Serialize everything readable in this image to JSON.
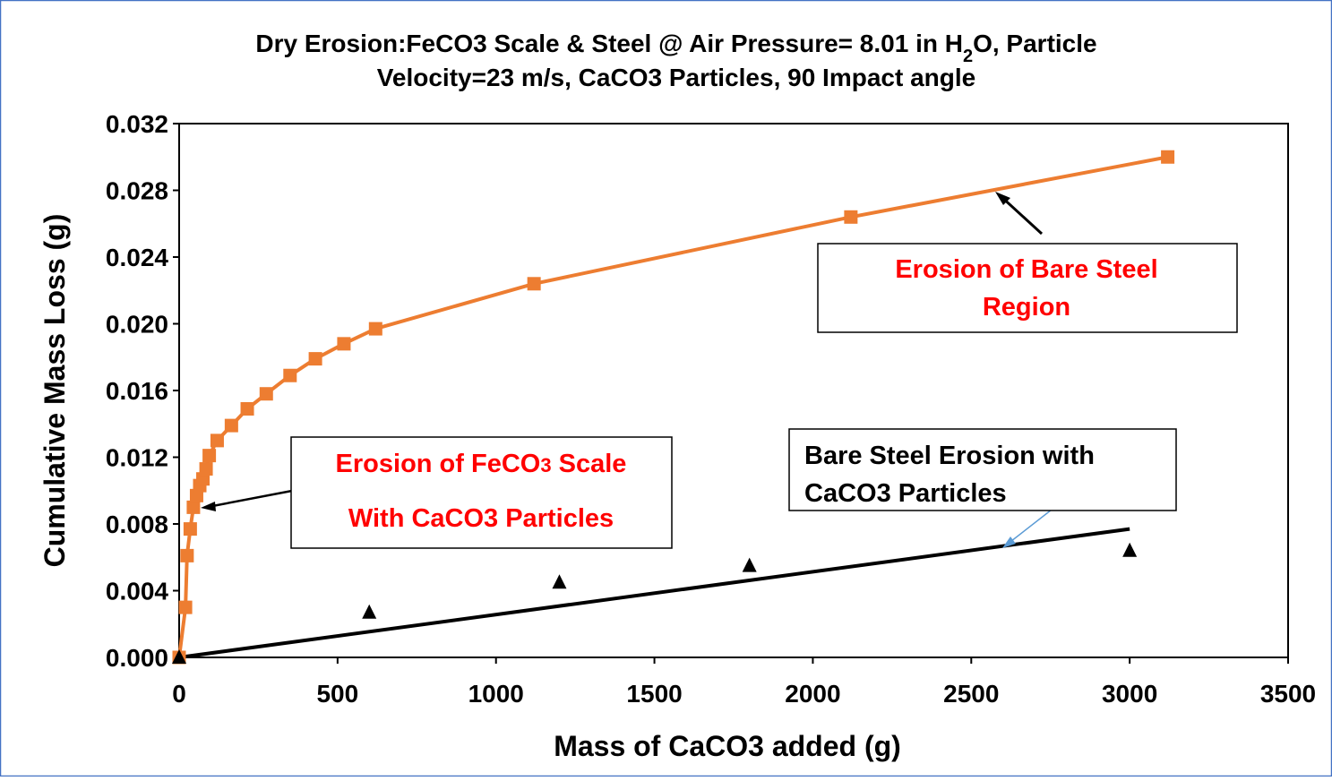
{
  "chart_data": {
    "type": "scatter",
    "title_lines": [
      {
        "parts": [
          {
            "t": "Dry Erosion:FeCO3 Scale & Steel @ Air Pressure= 8.01 in H"
          },
          {
            "t": "2",
            "sub": true
          },
          {
            "t": "O, Particle"
          }
        ]
      },
      {
        "parts": [
          {
            "t": "Velocity=23 m/s, CaCO3 Particles, 90 Impact angle"
          }
        ]
      }
    ],
    "xlabel": "Mass of CaCO3 added (g)",
    "ylabel": "Cumulative Mass Loss (g)",
    "xlim": [
      0,
      3500
    ],
    "ylim": [
      0,
      0.032
    ],
    "x_ticks": [
      0,
      500,
      1000,
      1500,
      2000,
      2500,
      3000,
      3500
    ],
    "y_ticks": [
      "0.000",
      "0.004",
      "0.008",
      "0.012",
      "0.016",
      "0.020",
      "0.024",
      "0.028",
      "0.032"
    ],
    "y_tick_values": [
      0,
      0.004,
      0.008,
      0.012,
      0.016,
      0.02,
      0.024,
      0.028,
      0.032
    ],
    "grid": false,
    "series": [
      {
        "style": "orange-squares-line",
        "color": "#ed7d31",
        "x": [
          0,
          20,
          25,
          35,
          45,
          55,
          65,
          75,
          85,
          95,
          120,
          165,
          215,
          275,
          350,
          430,
          520,
          620,
          1120,
          2120,
          3120
        ],
        "y": [
          0.0,
          0.003,
          0.0061,
          0.0077,
          0.009,
          0.0097,
          0.0103,
          0.0107,
          0.0113,
          0.0121,
          0.013,
          0.0139,
          0.0149,
          0.0158,
          0.0169,
          0.0179,
          0.0188,
          0.0197,
          0.0224,
          0.0264,
          0.03
        ]
      },
      {
        "style": "black-triangles",
        "color": "#000000",
        "x": [
          0,
          600,
          1200,
          1800,
          3000
        ],
        "y": [
          0.0,
          0.0027,
          0.0045,
          0.0055,
          0.0064
        ]
      },
      {
        "style": "black-trendline",
        "color": "#000000",
        "x": [
          0,
          3000
        ],
        "y": [
          0.0,
          0.0077
        ]
      }
    ],
    "annotations": [
      {
        "lines": [
          [
            {
              "t": "Erosion of Bare Steel"
            }
          ],
          [
            {
              "t": "Region"
            }
          ]
        ],
        "color": "#ff0000"
      },
      {
        "lines": [
          [
            {
              "t": "Erosion of FeCO"
            },
            {
              "t": "3",
              "small": true
            },
            {
              "t": " Scale"
            }
          ],
          [
            {
              "t": "With CaCO3 Particles"
            }
          ]
        ],
        "color": "#ff0000"
      },
      {
        "lines": [
          [
            {
              "t": "Bare Steel Erosion with"
            }
          ],
          [
            {
              "t": "CaCO3 Particles"
            }
          ]
        ],
        "color": "#000000"
      }
    ]
  }
}
